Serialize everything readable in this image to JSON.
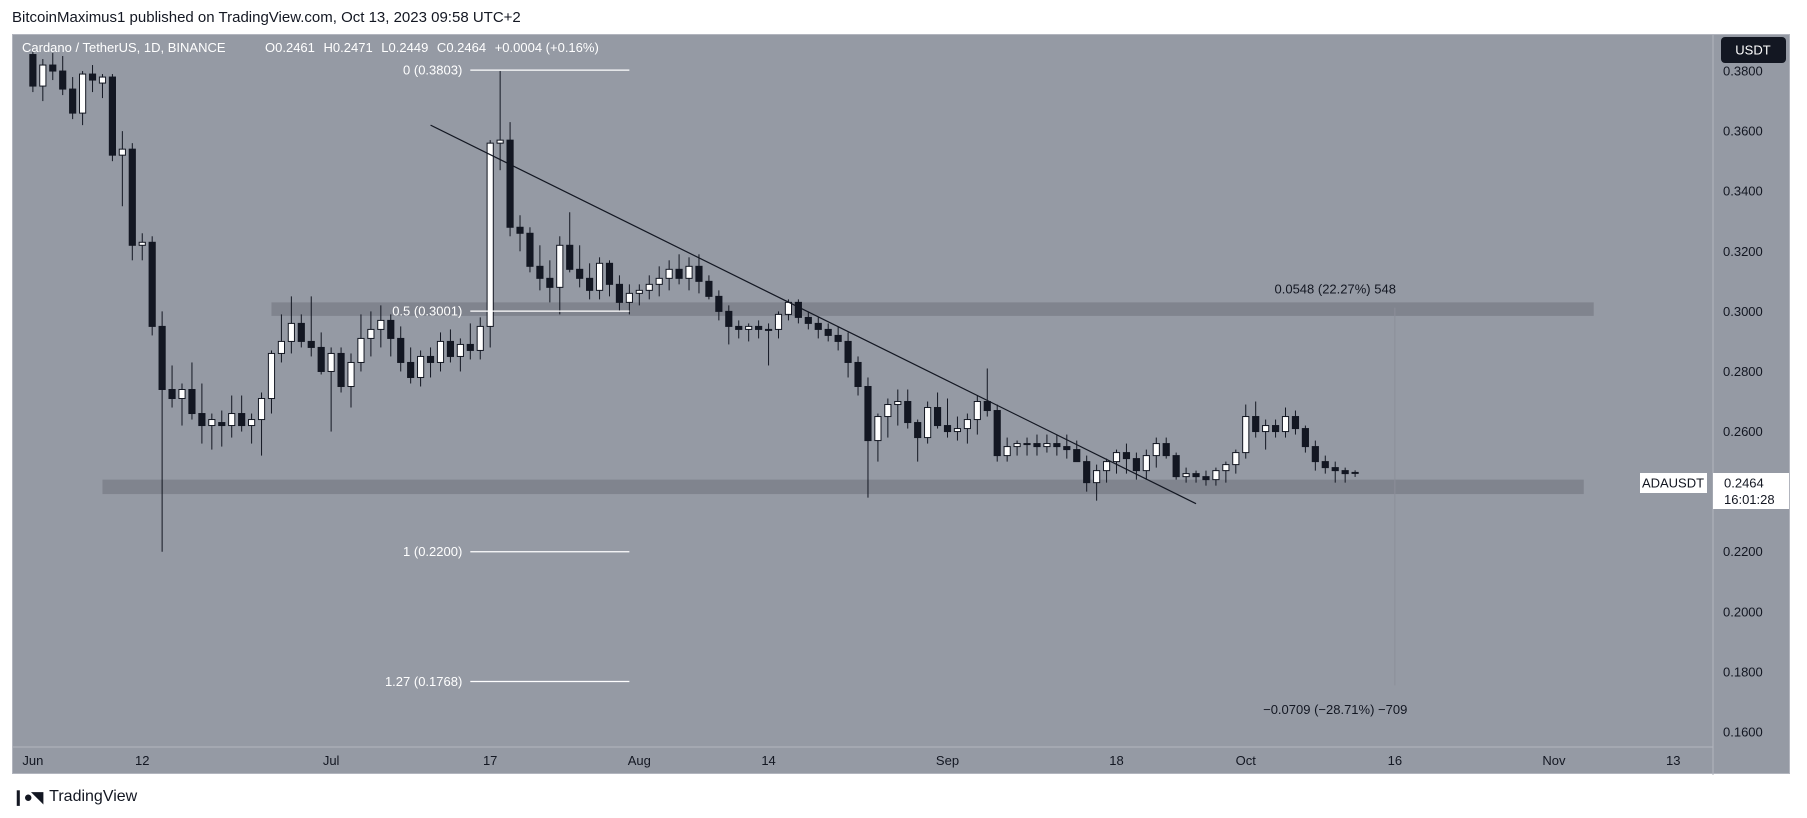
{
  "header": {
    "published": "BitcoinMaximus1 published on TradingView.com, Oct 13, 2023 09:58 UTC+2"
  },
  "footer": {
    "brand": "TradingView",
    "logo_icon": "tradingview-logo-icon"
  },
  "colors": {
    "background": "#959aa4",
    "bull": "#ffffff",
    "bear": "#131722",
    "zone": "#7d828c",
    "fib_line": "#ffffff",
    "trend_line": "#131722",
    "price_tag": "#ffffff"
  },
  "chart_data": {
    "type": "candlestick",
    "title": "Cardano / TetherUS, 1D, BINANCE",
    "ohlc": {
      "o_label": "O",
      "o": "0.2461",
      "h_label": "H",
      "h": "0.2471",
      "l_label": "L",
      "l": "0.2449",
      "c_label": "C",
      "c": "0.2464",
      "change": "+0.0004 (+0.16%)"
    },
    "currency": "USDT",
    "symbol": "ADAUSDT",
    "last_price": "0.2464",
    "countdown": "16:01:28",
    "ylim": [
      0.155,
      0.392
    ],
    "y_ticks": [
      "0.3800",
      "0.3600",
      "0.3400",
      "0.3200",
      "0.3000",
      "0.2800",
      "0.2600",
      "0.2400",
      "0.2200",
      "0.2000",
      "0.1800",
      "0.1600"
    ],
    "x_start": "2023-06-01",
    "x_range": [
      "2023-05-30",
      "2023-11-17"
    ],
    "x_ticks": [
      {
        "date": "2023-06-01",
        "label": "Jun"
      },
      {
        "date": "2023-06-12",
        "label": "12"
      },
      {
        "date": "2023-07-01",
        "label": "Jul"
      },
      {
        "date": "2023-07-17",
        "label": "17"
      },
      {
        "date": "2023-08-01",
        "label": "Aug"
      },
      {
        "date": "2023-08-14",
        "label": "14"
      },
      {
        "date": "2023-09-01",
        "label": "Sep"
      },
      {
        "date": "2023-09-18",
        "label": "18"
      },
      {
        "date": "2023-10-01",
        "label": "Oct"
      },
      {
        "date": "2023-10-16",
        "label": "16"
      },
      {
        "date": "2023-11-01",
        "label": "Nov"
      },
      {
        "date": "2023-11-13",
        "label": "13"
      }
    ],
    "candles": [
      [
        0.3855,
        0.387,
        0.373,
        0.375
      ],
      [
        0.375,
        0.384,
        0.37,
        0.382
      ],
      [
        0.382,
        0.386,
        0.377,
        0.38
      ],
      [
        0.38,
        0.385,
        0.372,
        0.374
      ],
      [
        0.374,
        0.378,
        0.364,
        0.366
      ],
      [
        0.366,
        0.38,
        0.362,
        0.379
      ],
      [
        0.379,
        0.382,
        0.373,
        0.377
      ],
      [
        0.376,
        0.379,
        0.371,
        0.378
      ],
      [
        0.378,
        0.379,
        0.35,
        0.352
      ],
      [
        0.352,
        0.36,
        0.335,
        0.354
      ],
      [
        0.354,
        0.356,
        0.317,
        0.322
      ],
      [
        0.322,
        0.326,
        0.317,
        0.323
      ],
      [
        0.323,
        0.325,
        0.292,
        0.295
      ],
      [
        0.295,
        0.3,
        0.22,
        0.274
      ],
      [
        0.274,
        0.282,
        0.268,
        0.271
      ],
      [
        0.271,
        0.276,
        0.262,
        0.274
      ],
      [
        0.274,
        0.283,
        0.264,
        0.266
      ],
      [
        0.266,
        0.276,
        0.256,
        0.262
      ],
      [
        0.262,
        0.266,
        0.254,
        0.264
      ],
      [
        0.263,
        0.267,
        0.255,
        0.262
      ],
      [
        0.262,
        0.272,
        0.258,
        0.266
      ],
      [
        0.266,
        0.272,
        0.26,
        0.262
      ],
      [
        0.262,
        0.266,
        0.256,
        0.264
      ],
      [
        0.264,
        0.273,
        0.252,
        0.271
      ],
      [
        0.271,
        0.287,
        0.266,
        0.286
      ],
      [
        0.286,
        0.299,
        0.283,
        0.29
      ],
      [
        0.29,
        0.305,
        0.286,
        0.296
      ],
      [
        0.296,
        0.299,
        0.288,
        0.29
      ],
      [
        0.29,
        0.305,
        0.285,
        0.288
      ],
      [
        0.288,
        0.293,
        0.279,
        0.28
      ],
      [
        0.28,
        0.288,
        0.26,
        0.286
      ],
      [
        0.286,
        0.288,
        0.273,
        0.275
      ],
      [
        0.275,
        0.286,
        0.268,
        0.283
      ],
      [
        0.283,
        0.299,
        0.28,
        0.291
      ],
      [
        0.291,
        0.3,
        0.285,
        0.294
      ],
      [
        0.294,
        0.302,
        0.288,
        0.297
      ],
      [
        0.297,
        0.299,
        0.285,
        0.291
      ],
      [
        0.291,
        0.295,
        0.28,
        0.283
      ],
      [
        0.283,
        0.288,
        0.276,
        0.278
      ],
      [
        0.278,
        0.287,
        0.275,
        0.285
      ],
      [
        0.285,
        0.288,
        0.278,
        0.283
      ],
      [
        0.283,
        0.293,
        0.28,
        0.29
      ],
      [
        0.29,
        0.294,
        0.283,
        0.285
      ],
      [
        0.285,
        0.291,
        0.28,
        0.289
      ],
      [
        0.289,
        0.296,
        0.284,
        0.287
      ],
      [
        0.287,
        0.298,
        0.284,
        0.295
      ],
      [
        0.295,
        0.357,
        0.288,
        0.356
      ],
      [
        0.356,
        0.38,
        0.347,
        0.357
      ],
      [
        0.357,
        0.363,
        0.325,
        0.328
      ],
      [
        0.328,
        0.332,
        0.32,
        0.326
      ],
      [
        0.326,
        0.328,
        0.313,
        0.315
      ],
      [
        0.315,
        0.322,
        0.307,
        0.311
      ],
      [
        0.311,
        0.317,
        0.303,
        0.308
      ],
      [
        0.308,
        0.325,
        0.299,
        0.322
      ],
      [
        0.322,
        0.333,
        0.313,
        0.314
      ],
      [
        0.314,
        0.322,
        0.308,
        0.311
      ],
      [
        0.311,
        0.316,
        0.304,
        0.307
      ],
      [
        0.307,
        0.318,
        0.304,
        0.316
      ],
      [
        0.316,
        0.317,
        0.305,
        0.309
      ],
      [
        0.309,
        0.312,
        0.3,
        0.303
      ],
      [
        0.303,
        0.309,
        0.299,
        0.306
      ],
      [
        0.306,
        0.309,
        0.302,
        0.307
      ],
      [
        0.307,
        0.312,
        0.304,
        0.309
      ],
      [
        0.309,
        0.315,
        0.305,
        0.311
      ],
      [
        0.311,
        0.317,
        0.307,
        0.314
      ],
      [
        0.314,
        0.319,
        0.309,
        0.311
      ],
      [
        0.311,
        0.318,
        0.307,
        0.315
      ],
      [
        0.315,
        0.319,
        0.306,
        0.31
      ],
      [
        0.31,
        0.312,
        0.304,
        0.305
      ],
      [
        0.305,
        0.307,
        0.297,
        0.3
      ],
      [
        0.3,
        0.302,
        0.289,
        0.295
      ],
      [
        0.295,
        0.297,
        0.291,
        0.294
      ],
      [
        0.294,
        0.296,
        0.29,
        0.295
      ],
      [
        0.295,
        0.297,
        0.291,
        0.294
      ],
      [
        0.294,
        0.296,
        0.282,
        0.294
      ],
      [
        0.294,
        0.3,
        0.291,
        0.299
      ],
      [
        0.299,
        0.304,
        0.297,
        0.303
      ],
      [
        0.303,
        0.304,
        0.296,
        0.298
      ],
      [
        0.298,
        0.3,
        0.294,
        0.296
      ],
      [
        0.296,
        0.298,
        0.291,
        0.294
      ],
      [
        0.294,
        0.296,
        0.29,
        0.292
      ],
      [
        0.292,
        0.295,
        0.287,
        0.29
      ],
      [
        0.29,
        0.293,
        0.278,
        0.283
      ],
      [
        0.283,
        0.285,
        0.272,
        0.275
      ],
      [
        0.275,
        0.278,
        0.238,
        0.257
      ],
      [
        0.257,
        0.266,
        0.25,
        0.265
      ],
      [
        0.265,
        0.271,
        0.258,
        0.269
      ],
      [
        0.269,
        0.274,
        0.262,
        0.27
      ],
      [
        0.27,
        0.274,
        0.261,
        0.263
      ],
      [
        0.263,
        0.264,
        0.25,
        0.258
      ],
      [
        0.258,
        0.27,
        0.256,
        0.268
      ],
      [
        0.268,
        0.273,
        0.261,
        0.262
      ],
      [
        0.262,
        0.271,
        0.258,
        0.26
      ],
      [
        0.26,
        0.265,
        0.257,
        0.261
      ],
      [
        0.261,
        0.266,
        0.256,
        0.264
      ],
      [
        0.264,
        0.272,
        0.259,
        0.27
      ],
      [
        0.27,
        0.281,
        0.265,
        0.267
      ],
      [
        0.267,
        0.269,
        0.25,
        0.252
      ],
      [
        0.252,
        0.258,
        0.25,
        0.255
      ],
      [
        0.255,
        0.257,
        0.252,
        0.256
      ],
      [
        0.256,
        0.258,
        0.252,
        0.256
      ],
      [
        0.256,
        0.259,
        0.252,
        0.255
      ],
      [
        0.255,
        0.259,
        0.253,
        0.256
      ],
      [
        0.256,
        0.259,
        0.252,
        0.255
      ],
      [
        0.255,
        0.259,
        0.251,
        0.254
      ],
      [
        0.254,
        0.257,
        0.25,
        0.25
      ],
      [
        0.25,
        0.252,
        0.24,
        0.243
      ],
      [
        0.243,
        0.249,
        0.237,
        0.247
      ],
      [
        0.247,
        0.251,
        0.243,
        0.25
      ],
      [
        0.25,
        0.254,
        0.246,
        0.253
      ],
      [
        0.253,
        0.256,
        0.246,
        0.251
      ],
      [
        0.251,
        0.253,
        0.244,
        0.247
      ],
      [
        0.247,
        0.254,
        0.244,
        0.252
      ],
      [
        0.252,
        0.258,
        0.248,
        0.256
      ],
      [
        0.256,
        0.258,
        0.251,
        0.252
      ],
      [
        0.252,
        0.253,
        0.244,
        0.245
      ],
      [
        0.245,
        0.248,
        0.243,
        0.246
      ],
      [
        0.246,
        0.247,
        0.243,
        0.245
      ],
      [
        0.245,
        0.247,
        0.242,
        0.244
      ],
      [
        0.244,
        0.248,
        0.242,
        0.247
      ],
      [
        0.247,
        0.25,
        0.243,
        0.249
      ],
      [
        0.249,
        0.254,
        0.246,
        0.253
      ],
      [
        0.253,
        0.269,
        0.251,
        0.265
      ],
      [
        0.265,
        0.27,
        0.258,
        0.26
      ],
      [
        0.26,
        0.264,
        0.254,
        0.262
      ],
      [
        0.262,
        0.264,
        0.258,
        0.26
      ],
      [
        0.26,
        0.268,
        0.258,
        0.265
      ],
      [
        0.265,
        0.267,
        0.259,
        0.261
      ],
      [
        0.261,
        0.262,
        0.253,
        0.255
      ],
      [
        0.255,
        0.257,
        0.247,
        0.25
      ],
      [
        0.25,
        0.252,
        0.246,
        0.248
      ],
      [
        0.248,
        0.25,
        0.243,
        0.247
      ],
      [
        0.247,
        0.248,
        0.243,
        0.246
      ],
      [
        0.2461,
        0.2471,
        0.2449,
        0.2464
      ]
    ],
    "zones": [
      {
        "from": "2023-06-08",
        "to": "2023-11-04",
        "low": 0.2392,
        "high": 0.244
      },
      {
        "from": "2023-06-25",
        "to": "2023-11-05",
        "low": 0.2985,
        "high": 0.303
      }
    ],
    "fib_levels": [
      {
        "label": "0 (0.3803)",
        "value": 0.3803,
        "from": "2023-07-15",
        "to": "2023-07-31"
      },
      {
        "label": "0.5 (0.3001)",
        "value": 0.3001,
        "from": "2023-07-15",
        "to": "2023-07-31"
      },
      {
        "label": "1 (0.2200)",
        "value": 0.22,
        "from": "2023-07-15",
        "to": "2023-07-31"
      },
      {
        "label": "1.27 (0.1768)",
        "value": 0.1768,
        "from": "2023-07-15",
        "to": "2023-07-31"
      }
    ],
    "trend_line": {
      "from_date": "2023-07-11",
      "from": 0.362,
      "to_date": "2023-09-26",
      "to": 0.236
    },
    "measure_up": {
      "text": "0.0548 (22.27%) 548",
      "at_date": "2023-10-10",
      "at": 0.306,
      "line_date": "2023-10-16",
      "from": 0.2464,
      "to": 0.3012
    },
    "measure_down": {
      "text": "−0.0709 (−28.71%) −709",
      "at_date": "2023-10-10",
      "at": 0.166,
      "line_date": "2023-10-16",
      "from": 0.2464,
      "to": 0.1755
    }
  }
}
